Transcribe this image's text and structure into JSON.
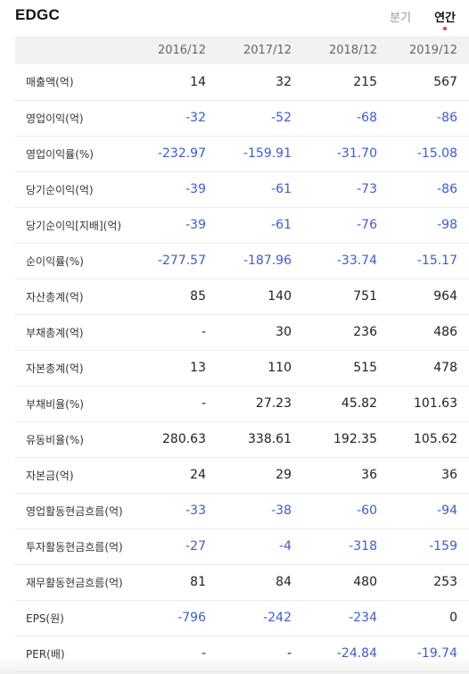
{
  "header": {
    "title": "EDGC",
    "tabs": [
      {
        "label": "분기",
        "active": false
      },
      {
        "label": "연간",
        "active": true
      }
    ]
  },
  "colors": {
    "negative": "#3e5bd6",
    "positive": "#222222",
    "active_dot": "#e8402c",
    "header_bg": "#f2f2f2"
  },
  "table": {
    "columns": [
      "2016/12",
      "2017/12",
      "2018/12",
      "2019/12"
    ],
    "rows": [
      {
        "label": "매출액(억)",
        "values": [
          "14",
          "32",
          "215",
          "567"
        ]
      },
      {
        "label": "영업이익(억)",
        "values": [
          "-32",
          "-52",
          "-68",
          "-86"
        ]
      },
      {
        "label": "영업이익률(%)",
        "values": [
          "-232.97",
          "-159.91",
          "-31.70",
          "-15.08"
        ]
      },
      {
        "label": "당기순이익(억)",
        "values": [
          "-39",
          "-61",
          "-73",
          "-86"
        ]
      },
      {
        "label": "당기순이익[지배](억)",
        "values": [
          "-39",
          "-61",
          "-76",
          "-98"
        ]
      },
      {
        "label": "순이익률(%)",
        "values": [
          "-277.57",
          "-187.96",
          "-33.74",
          "-15.17"
        ]
      },
      {
        "label": "자산총계(억)",
        "values": [
          "85",
          "140",
          "751",
          "964"
        ]
      },
      {
        "label": "부채총계(억)",
        "values": [
          "-",
          "30",
          "236",
          "486"
        ]
      },
      {
        "label": "자본총계(억)",
        "values": [
          "13",
          "110",
          "515",
          "478"
        ]
      },
      {
        "label": "부채비율(%)",
        "values": [
          "-",
          "27.23",
          "45.82",
          "101.63"
        ]
      },
      {
        "label": "유동비율(%)",
        "values": [
          "280.63",
          "338.61",
          "192.35",
          "105.62"
        ]
      },
      {
        "label": "자본금(억)",
        "values": [
          "24",
          "29",
          "36",
          "36"
        ]
      },
      {
        "label": "영업활동현금흐름(억)",
        "values": [
          "-33",
          "-38",
          "-60",
          "-94"
        ]
      },
      {
        "label": "투자활동현금흐름(억)",
        "values": [
          "-27",
          "-4",
          "-318",
          "-159"
        ]
      },
      {
        "label": "재무활동현금흐름(억)",
        "values": [
          "81",
          "84",
          "480",
          "253"
        ]
      },
      {
        "label": "EPS(원)",
        "values": [
          "-796",
          "-242",
          "-234",
          "0"
        ]
      },
      {
        "label": "PER(배)",
        "values": [
          "-",
          "-",
          "-24.84",
          "-19.74"
        ]
      }
    ]
  }
}
